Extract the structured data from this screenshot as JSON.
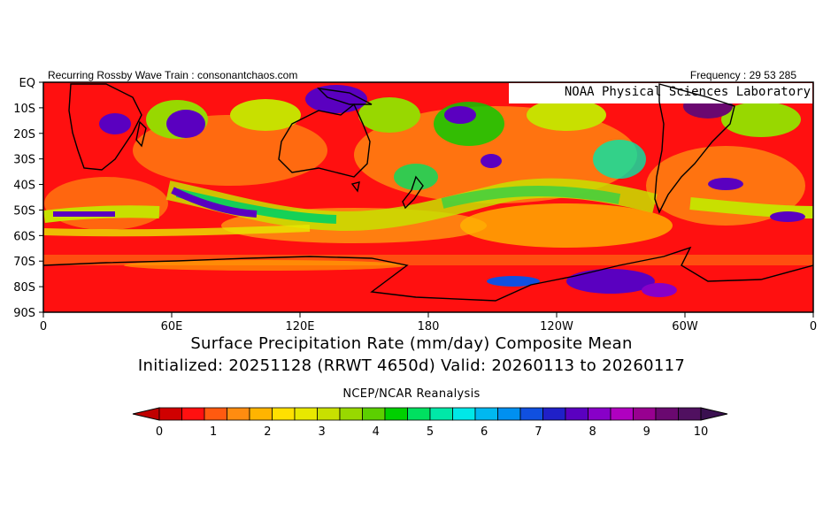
{
  "header": {
    "left_text": "Recurring Rossby Wave Train : consonantchaos.com",
    "right_text": "Frequency : 29 53 285",
    "lab_label": "NOAA Physical Sciences Laboratory"
  },
  "map": {
    "lat_labels": [
      "EQ",
      "10S",
      "20S",
      "30S",
      "40S",
      "50S",
      "60S",
      "70S",
      "80S",
      "90S"
    ],
    "lon_labels": [
      "0",
      "60E",
      "120E",
      "180",
      "120W",
      "60W",
      "0"
    ],
    "field": "surface precipitation rate"
  },
  "titles": {
    "line1": "Surface Precipitation Rate (mm/day) Composite Mean",
    "line2": "Initialized: 20251128 (RRWT 4650d) Valid: 20260113 to 20260117",
    "line3": "NCEP/NCAR Reanalysis"
  },
  "colorbar": {
    "colors": [
      "#d00000",
      "#ff1010",
      "#ff5a10",
      "#ff8c10",
      "#ffb400",
      "#ffe000",
      "#e8e800",
      "#c8e000",
      "#98d800",
      "#5cd000",
      "#00d000",
      "#00e060",
      "#00e8a8",
      "#00e8e8",
      "#00b8f0",
      "#0090f0",
      "#1050e0",
      "#2020c8",
      "#5a00c0",
      "#8800c8",
      "#b000c0",
      "#980090",
      "#6a0870",
      "#501060"
    ],
    "tick_labels": [
      "0",
      "1",
      "2",
      "3",
      "4",
      "5",
      "6",
      "7",
      "8",
      "9",
      "10"
    ],
    "min": 0,
    "max": 10
  }
}
